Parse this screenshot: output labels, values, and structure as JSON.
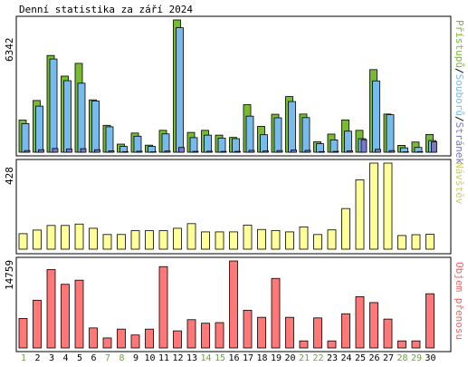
{
  "title": "Denní statistika za září 2024",
  "colors": {
    "border": "#000000",
    "hits_fill": "#77bb33",
    "files_fill": "#77bbee",
    "pages_fill": "#7777cc",
    "visits_fill": "#ffff99",
    "kb_fill": "#ff7777",
    "visits_label": "#cccc66",
    "kb_label": "#ee6666",
    "weekday_label": "#000000",
    "weekend_label": "#66aa33"
  },
  "legend_top": {
    "hits": "Přístupů",
    "sep1": "/",
    "files": "Souborů",
    "sep2": "/",
    "pages": "Stránek"
  },
  "chart_data": [
    {
      "type": "bar",
      "panel": "top",
      "ymax_label": "6342",
      "ylim": [
        0,
        6342
      ],
      "categories": [
        "1",
        "2",
        "3",
        "4",
        "5",
        "6",
        "7",
        "8",
        "9",
        "10",
        "11",
        "12",
        "13",
        "14",
        "15",
        "16",
        "17",
        "18",
        "19",
        "20",
        "21",
        "22",
        "23",
        "24",
        "25",
        "26",
        "27",
        "28",
        "29",
        "30"
      ],
      "series": [
        {
          "name": "Přístupů",
          "key": "hits",
          "values": [
            1540,
            2480,
            4640,
            3650,
            4260,
            2510,
            1290,
            390,
            920,
            340,
            1050,
            6342,
            950,
            1050,
            820,
            710,
            2280,
            1240,
            1820,
            2670,
            1830,
            500,
            870,
            1550,
            1050,
            3960,
            1830,
            330,
            490,
            850
          ]
        },
        {
          "name": "Souborů",
          "key": "files",
          "values": [
            1370,
            2210,
            4470,
            3430,
            3310,
            2460,
            1220,
            280,
            770,
            280,
            880,
            5970,
            700,
            820,
            680,
            650,
            1730,
            840,
            1650,
            2430,
            1660,
            410,
            590,
            1010,
            650,
            3420,
            1800,
            210,
            230,
            560
          ]
        },
        {
          "name": "Stránek",
          "key": "pages",
          "values": [
            80,
            120,
            180,
            160,
            170,
            120,
            70,
            30,
            50,
            20,
            60,
            230,
            40,
            50,
            40,
            40,
            90,
            60,
            80,
            110,
            90,
            30,
            40,
            70,
            600,
            140,
            80,
            20,
            30,
            500
          ]
        }
      ]
    },
    {
      "type": "bar",
      "panel": "middle",
      "ymax_label": "428",
      "ylim": [
        0,
        428
      ],
      "series_label": "Návštěv",
      "categories": [
        "1",
        "2",
        "3",
        "4",
        "5",
        "6",
        "7",
        "8",
        "9",
        "10",
        "11",
        "12",
        "13",
        "14",
        "15",
        "16",
        "17",
        "18",
        "19",
        "20",
        "21",
        "22",
        "23",
        "24",
        "25",
        "26",
        "27",
        "28",
        "29",
        "30"
      ],
      "values": [
        77,
        95,
        118,
        118,
        125,
        104,
        73,
        73,
        92,
        92,
        92,
        104,
        127,
        86,
        86,
        86,
        120,
        98,
        93,
        86,
        111,
        73,
        96,
        202,
        345,
        428,
        428,
        68,
        72,
        74
      ]
    },
    {
      "type": "bar",
      "panel": "bottom",
      "ymax_label": "14759",
      "ylim": [
        0,
        14759
      ],
      "series_label": "Objem přenosu",
      "categories": [
        "1",
        "2",
        "3",
        "4",
        "5",
        "6",
        "7",
        "8",
        "9",
        "10",
        "11",
        "12",
        "13",
        "14",
        "15",
        "16",
        "17",
        "18",
        "19",
        "20",
        "21",
        "22",
        "23",
        "24",
        "25",
        "26",
        "27",
        "28",
        "29",
        "30"
      ],
      "values": [
        5000,
        8100,
        13300,
        10800,
        11500,
        3400,
        1700,
        3200,
        2200,
        3200,
        13800,
        2900,
        4800,
        4200,
        4300,
        14759,
        6400,
        5200,
        11800,
        5200,
        1200,
        5100,
        1200,
        5800,
        8700,
        7700,
        4900,
        1200,
        1200,
        9200
      ]
    }
  ],
  "weekend_days": [
    "1",
    "7",
    "8",
    "14",
    "15",
    "21",
    "22",
    "28",
    "29"
  ]
}
